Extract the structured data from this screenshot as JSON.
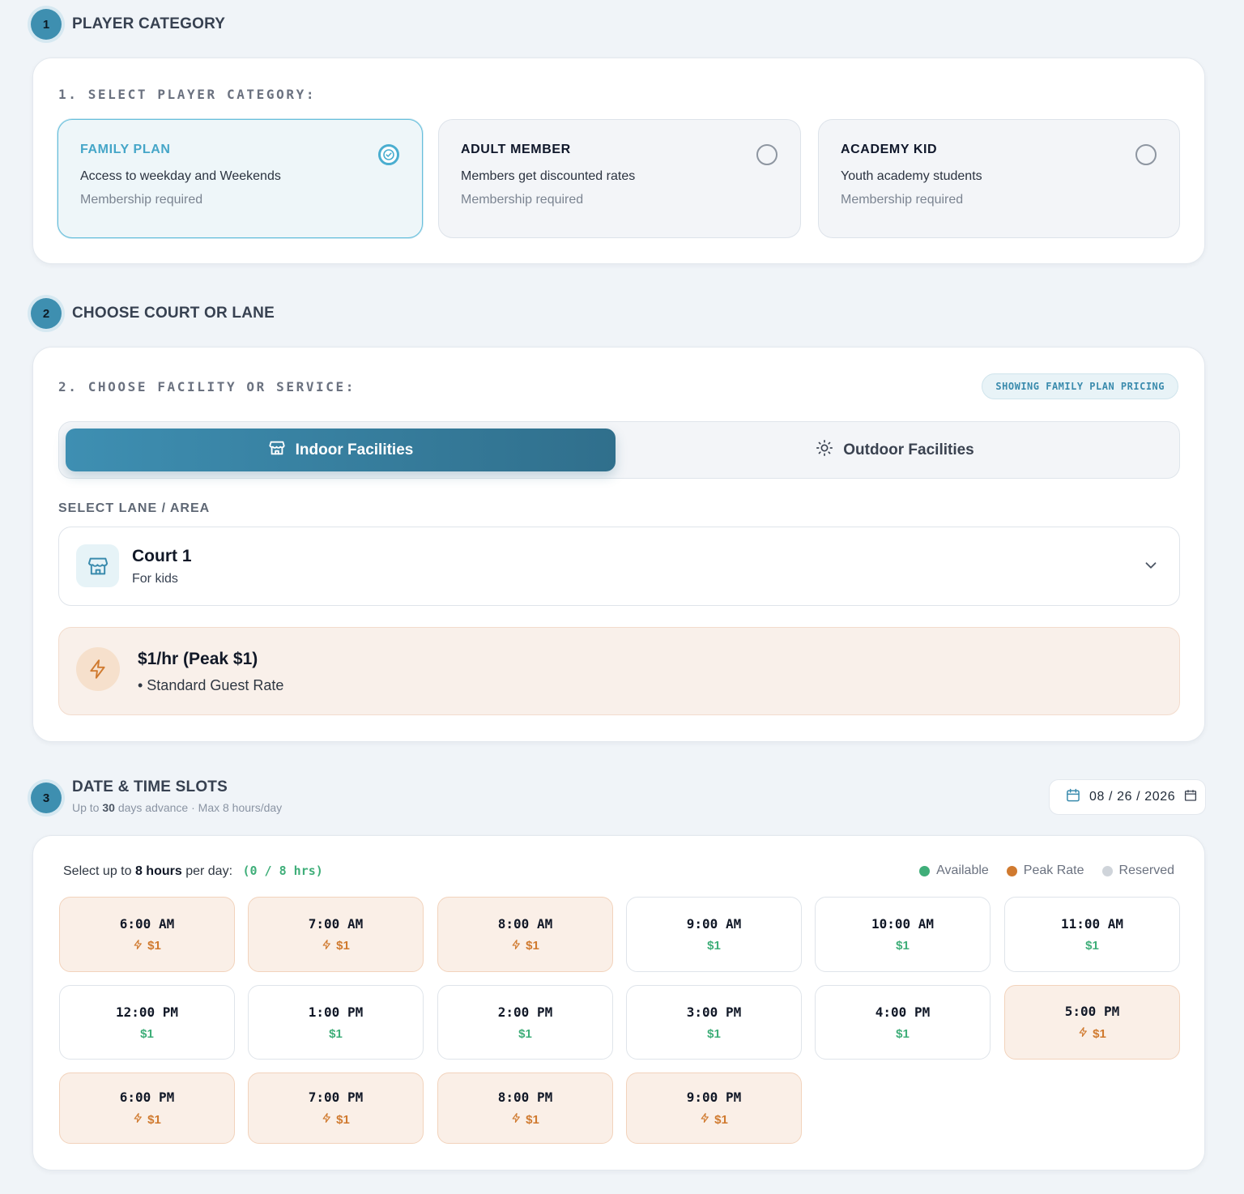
{
  "colors": {
    "accent": "#3e8fb0",
    "available": "#3fae79",
    "peak": "#d07a2f",
    "reserved": "#cfd4da"
  },
  "steps": [
    {
      "num": "1",
      "title": "PLAYER CATEGORY"
    },
    {
      "num": "2",
      "title": "CHOOSE COURT OR LANE"
    },
    {
      "num": "3",
      "title": "DATE & TIME SLOTS"
    }
  ],
  "step3_sub": {
    "prefix": "Up to",
    "days": "30",
    "suffix": "days advance · Max 8 hours/day"
  },
  "category": {
    "label": "1. SELECT PLAYER CATEGORY:",
    "options": [
      {
        "title": "FAMILY PLAN",
        "desc": "Access to weekday and Weekends",
        "note": "Membership required",
        "selected": true
      },
      {
        "title": "ADULT MEMBER",
        "desc": "Members get discounted rates",
        "note": "Membership required",
        "selected": false
      },
      {
        "title": "ACADEMY KID",
        "desc": "Youth academy students",
        "note": "Membership required",
        "selected": false
      }
    ]
  },
  "facility": {
    "label": "2. CHOOSE FACILITY OR SERVICE:",
    "badge": "SHOWING FAMILY PLAN PRICING",
    "tabs": [
      {
        "label": "Indoor Facilities",
        "icon": "store-icon",
        "active": true
      },
      {
        "label": "Outdoor Facilities",
        "icon": "sun-icon",
        "active": false
      }
    ],
    "select_label": "SELECT LANE / AREA",
    "selected": {
      "name": "Court 1",
      "desc": "For kids",
      "icon": "store-icon"
    },
    "rate": {
      "title": "$1/hr (Peak $1)",
      "sub": "• Standard Guest Rate",
      "icon": "lightning-icon"
    }
  },
  "date": {
    "value": "08 / 26 / 2026",
    "icon": "calendar-icon"
  },
  "slots": {
    "prefix": "Select up to",
    "hours": "8 hours",
    "suffix": "per day:",
    "count": "(0 / 8 hrs)",
    "legend": [
      {
        "label": "Available",
        "color": "#3fae79"
      },
      {
        "label": "Peak Rate",
        "color": "#d07a2f"
      },
      {
        "label": "Reserved",
        "color": "#cfd4da"
      }
    ],
    "items": [
      {
        "time": "6:00 AM",
        "price": "$1",
        "peak": true
      },
      {
        "time": "7:00 AM",
        "price": "$1",
        "peak": true
      },
      {
        "time": "8:00 AM",
        "price": "$1",
        "peak": true
      },
      {
        "time": "9:00 AM",
        "price": "$1",
        "peak": false
      },
      {
        "time": "10:00 AM",
        "price": "$1",
        "peak": false
      },
      {
        "time": "11:00 AM",
        "price": "$1",
        "peak": false
      },
      {
        "time": "12:00 PM",
        "price": "$1",
        "peak": false
      },
      {
        "time": "1:00 PM",
        "price": "$1",
        "peak": false
      },
      {
        "time": "2:00 PM",
        "price": "$1",
        "peak": false
      },
      {
        "time": "3:00 PM",
        "price": "$1",
        "peak": false
      },
      {
        "time": "4:00 PM",
        "price": "$1",
        "peak": false
      },
      {
        "time": "5:00 PM",
        "price": "$1",
        "peak": true
      },
      {
        "time": "6:00 PM",
        "price": "$1",
        "peak": true
      },
      {
        "time": "7:00 PM",
        "price": "$1",
        "peak": true
      },
      {
        "time": "8:00 PM",
        "price": "$1",
        "peak": true
      },
      {
        "time": "9:00 PM",
        "price": "$1",
        "peak": true
      }
    ]
  }
}
